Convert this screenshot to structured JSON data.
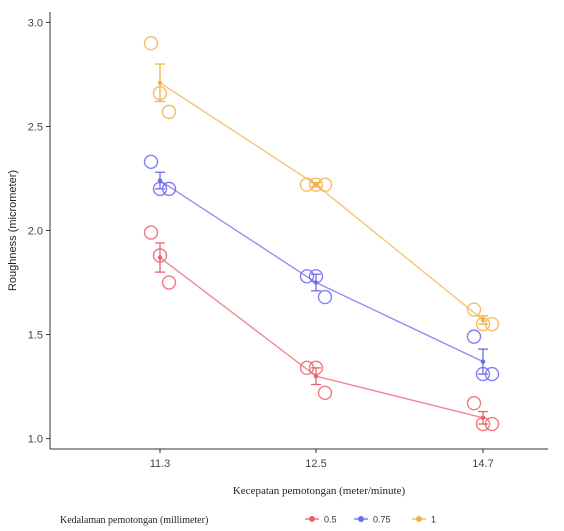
{
  "chart_data": {
    "type": "scatter",
    "xlabel": "Kecepatan pemotongan (meter/minute)",
    "ylabel": "Roughness (micrometer)",
    "categories": [
      "11.3",
      "12.5",
      "14.7"
    ],
    "ylim": [
      0.95,
      3.05
    ],
    "yticks": [
      "1.0",
      "1.5",
      "2.0",
      "2.5",
      "3.0"
    ],
    "grid": false,
    "legend": {
      "title": "Kedalaman pemotongan (millimeter)",
      "position": "bottom"
    },
    "series": [
      {
        "name": "0.5",
        "color": "#e8636b",
        "means": [
          1.87,
          1.3,
          1.1
        ],
        "errors": [
          0.07,
          0.04,
          0.03
        ],
        "points": [
          [
            1.99,
            1.88,
            1.75
          ],
          [
            1.34,
            1.34,
            1.22
          ],
          [
            1.17,
            1.07,
            1.07
          ]
        ]
      },
      {
        "name": "0.75",
        "color": "#6b6bf0",
        "means": [
          2.24,
          1.75,
          1.37
        ],
        "errors": [
          0.04,
          0.04,
          0.06
        ],
        "points": [
          [
            2.33,
            2.2,
            2.2
          ],
          [
            1.78,
            1.78,
            1.68
          ],
          [
            1.49,
            1.31,
            1.31
          ]
        ]
      },
      {
        "name": "1",
        "color": "#f2b24a",
        "means": [
          2.71,
          2.22,
          1.57
        ],
        "errors": [
          0.09,
          0.01,
          0.02
        ],
        "points": [
          [
            2.9,
            2.66,
            2.57
          ],
          [
            2.22,
            2.22,
            2.22
          ],
          [
            1.62,
            1.55,
            1.55
          ]
        ]
      }
    ]
  }
}
